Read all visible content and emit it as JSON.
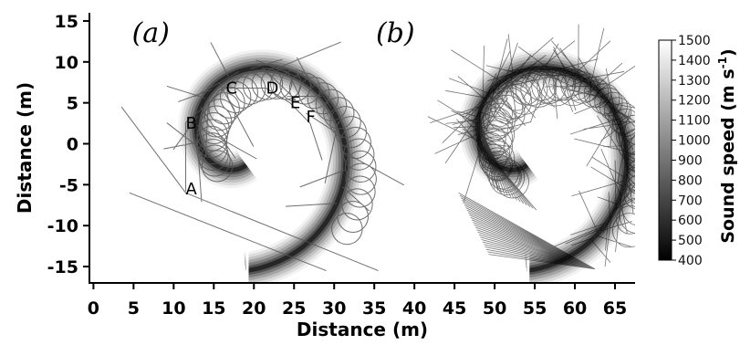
{
  "chart_data": {
    "type": "heatmap",
    "description_kind": "spiral sound-speed map with ray traces",
    "xlabel": "Distance (m)",
    "ylabel": "Distance (m)",
    "xlim": [
      -0.5,
      67.5
    ],
    "ylim": [
      -17,
      16
    ],
    "x_ticks": [
      0,
      5,
      10,
      15,
      20,
      25,
      30,
      35,
      40,
      45,
      50,
      55,
      60,
      65
    ],
    "y_ticks": [
      15,
      10,
      5,
      0,
      -5,
      -10,
      -15
    ],
    "x_tick_labels": [
      "0",
      "5",
      "10",
      "15",
      "20",
      "25",
      "30",
      "35",
      "40",
      "45",
      "50",
      "55",
      "60",
      "65"
    ],
    "y_tick_labels": [
      "15",
      "10",
      "5",
      "0",
      "-5",
      "-10",
      "-15"
    ],
    "panels": [
      {
        "label": "(a)",
        "center": [
          19,
          0
        ]
      },
      {
        "label": "(b)",
        "center": [
          54,
          0
        ]
      }
    ],
    "points": [
      {
        "label": "A",
        "x": 11.5,
        "y": -5.5
      },
      {
        "label": "B",
        "x": 11.5,
        "y": 2.5
      },
      {
        "label": "C",
        "x": 16.5,
        "y": 6.8
      },
      {
        "label": "D",
        "x": 21.5,
        "y": 6.8
      },
      {
        "label": "E",
        "x": 24.5,
        "y": 5.0
      },
      {
        "label": "F",
        "x": 26.5,
        "y": 3.3
      }
    ],
    "colorbar": {
      "title": "Sound speed (m s",
      "title_superscript": "-1",
      "title_close": ")",
      "min": 400,
      "max": 1500,
      "ticks": [
        1500,
        1400,
        1300,
        1200,
        1100,
        1000,
        900,
        800,
        700,
        600,
        500,
        400
      ],
      "tick_labels": [
        "1500",
        "1400",
        "1300",
        "1200",
        "1100",
        "1000",
        "900",
        "800",
        "700",
        "600",
        "500",
        "400"
      ],
      "colormap": "gray"
    },
    "grid": false,
    "legend": "none",
    "colors": {
      "background": "#ffffff",
      "ray": "#000000",
      "low_speed": "#000000",
      "high_speed": "#ffffff"
    }
  }
}
